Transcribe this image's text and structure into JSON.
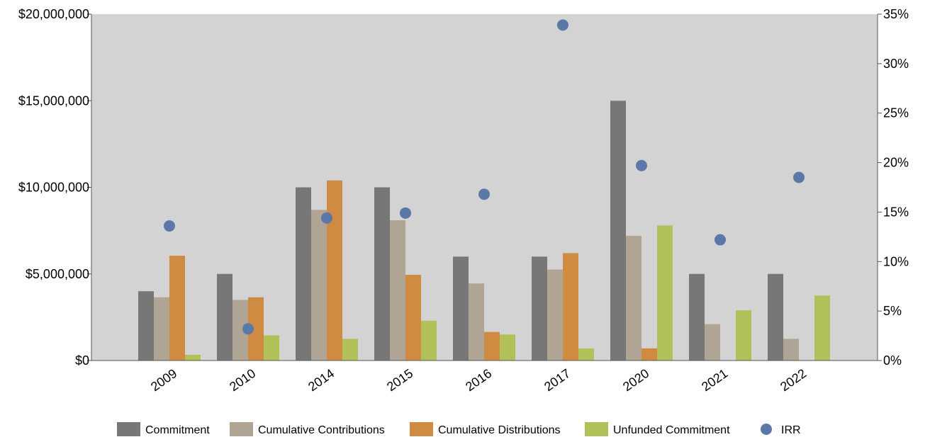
{
  "chart_data": {
    "type": "bar",
    "categories": [
      "2009",
      "2010",
      "2014",
      "2015",
      "2016",
      "2017",
      "2020",
      "2021",
      "2022"
    ],
    "series": [
      {
        "name": "Commitment",
        "color": "#777777",
        "values": [
          4000000,
          5000000,
          10000000,
          10000000,
          6000000,
          6000000,
          15000000,
          5000000,
          5000000
        ]
      },
      {
        "name": "Cumulative Contributions",
        "color": "#b0a494",
        "values": [
          3650000,
          3500000,
          8700000,
          8100000,
          4450000,
          5250000,
          7200000,
          2100000,
          1250000
        ]
      },
      {
        "name": "Cumulative Distributions",
        "color": "#d08b43",
        "values": [
          6050000,
          3650000,
          10400000,
          4950000,
          1650000,
          6200000,
          700000,
          0,
          0
        ]
      },
      {
        "name": "Unfunded Commitment",
        "color": "#b2c05a",
        "values": [
          330000,
          1450000,
          1250000,
          2300000,
          1500000,
          700000,
          7800000,
          2900000,
          3750000
        ]
      }
    ],
    "irr": {
      "name": "IRR",
      "color": "#5b78a8",
      "values": [
        13.6,
        3.2,
        14.4,
        14.9,
        16.8,
        33.9,
        19.7,
        12.2,
        18.5
      ]
    },
    "y_left": {
      "min": 0,
      "max": 20000000,
      "ticks": [
        0,
        5000000,
        10000000,
        15000000,
        20000000
      ],
      "tick_labels": [
        "$0",
        "$5,000,000",
        "$10,000,000",
        "$15,000,000",
        "$20,000,000"
      ]
    },
    "y_right": {
      "min": 0,
      "max": 35,
      "ticks": [
        0,
        5,
        10,
        15,
        20,
        25,
        30,
        35
      ],
      "tick_labels": [
        "0%",
        "5%",
        "10%",
        "15%",
        "20%",
        "25%",
        "30%",
        "35%"
      ]
    },
    "plot_background": "#d3d3d3",
    "grid": false,
    "legend_position": "bottom"
  }
}
